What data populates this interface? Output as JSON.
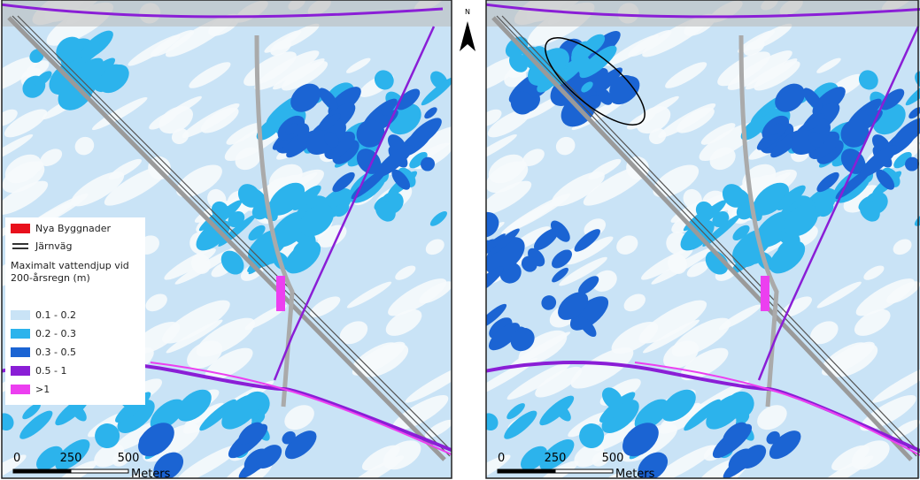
{
  "north_arrow": "N",
  "legend": {
    "items": [
      {
        "label": "Nya Byggnader",
        "color": "#e8101c"
      },
      {
        "label": "Järnväg"
      }
    ],
    "title": "Maximalt vattendjup vid 200-årsregn (m)",
    "classes": [
      {
        "label": "0.1 - 0.2",
        "color": "#c9e3f6"
      },
      {
        "label": "0.2 - 0.3",
        "color": "#2cb3ec"
      },
      {
        "label": "0.3 - 0.5",
        "color": "#1b64d3"
      },
      {
        "label": "0.5 - 1",
        "color": "#8a1ed6"
      },
      {
        "label": ">1",
        "color": "#ec3ff0"
      }
    ]
  },
  "scale_bar": {
    "labels": [
      "0",
      "250",
      "500"
    ],
    "unit": "Meters"
  }
}
